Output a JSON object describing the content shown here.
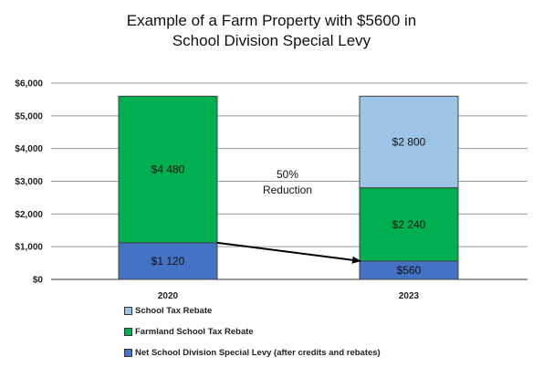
{
  "title_lines": [
    "Example of a Farm Property with $5600 in",
    "School Division Special Levy"
  ],
  "chart_data": {
    "type": "bar",
    "stacked": true,
    "title": "Example of a Farm Property with $5600 in School Division Special Levy",
    "categories": [
      "2020",
      "2023"
    ],
    "ylim": [
      0,
      6000
    ],
    "yticks": [
      0,
      1000,
      2000,
      3000,
      4000,
      5000,
      6000
    ],
    "ytick_labels": [
      "$0",
      "$1,000",
      "$2,000",
      "$3,000",
      "$4,000",
      "$5,000",
      "$6,000"
    ],
    "grid": true,
    "legend_position": "bottom-left",
    "series": [
      {
        "name": "Net School Division Special Levy (after credits and rebates)",
        "color": "#4472c4",
        "values": [
          1120,
          560
        ],
        "labels": [
          "$1 120",
          "$560"
        ]
      },
      {
        "name": "Farmland School Tax Rebate",
        "color": "#00b050",
        "values": [
          4480,
          2240
        ],
        "labels": [
          "$4 480",
          "$2 240"
        ]
      },
      {
        "name": "School Tax Rebate",
        "color": "#9dc3e6",
        "values": [
          0,
          2800
        ],
        "labels": [
          "",
          "$2 800"
        ]
      }
    ],
    "annotation": {
      "lines": [
        "50%",
        "Reduction"
      ]
    },
    "arrow": {
      "from_category": "2020",
      "to_category": "2023",
      "series": "Net School Division Special Levy (after credits and rebates)"
    }
  },
  "legend": [
    {
      "label": "School Tax Rebate",
      "color": "#9dc3e6"
    },
    {
      "label": "Farmland School Tax Rebate",
      "color": "#00b050"
    },
    {
      "label": "Net School Division Special Levy (after credits and rebates)",
      "color": "#4472c4"
    }
  ]
}
